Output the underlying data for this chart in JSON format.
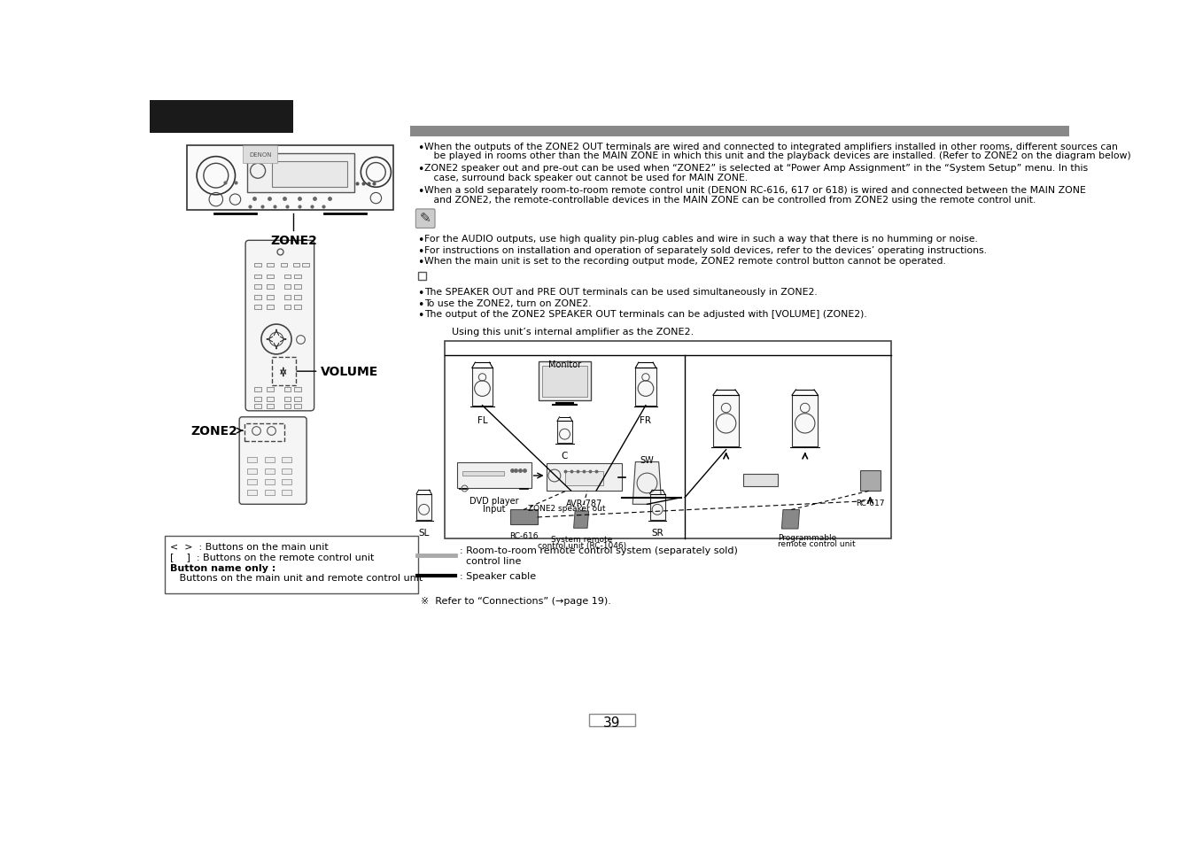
{
  "page_bg": "#ffffff",
  "header_bg": "#222222",
  "page_number": "39",
  "bullet_points_top": [
    "When the outputs of the ZONE2 OUT terminals are wired and connected to integrated amplifiers installed in other rooms, different sources can\n   be played in rooms other than the MAIN ZONE in which this unit and the playback devices are installed. (Refer to ZONE2 on the diagram below)",
    "ZONE2 speaker out and pre-out can be used when “ZONE2” is selected at “Power Amp Assignment” in the “System Setup” menu. In this\n   case, surround back speaker out cannot be used for MAIN ZONE.",
    "When a sold separately room-to-room remote control unit (DENON RC-616, 617 or 618) is wired and connected between the MAIN ZONE\n   and ZONE2, the remote-controllable devices in the MAIN ZONE can be controlled from ZONE2 using the remote control unit."
  ],
  "note_points": [
    "For the AUDIO outputs, use high quality pin-plug cables and wire in such a way that there is no humming or noise.",
    "For instructions on installation and operation of separately sold devices, refer to the devices’ operating instructions.",
    "When the main unit is set to the recording output mode, ZONE2 remote control button cannot be operated."
  ],
  "tip_points": [
    "The SPEAKER OUT and PRE OUT terminals can be used simultaneously in ZONE2.",
    "To use the ZONE2, turn on ZONE2.",
    "The output of the ZONE2 SPEAKER OUT terminals can be adjusted with [VOLUME] (ZONE2)."
  ],
  "diagram_caption": "Using this unit’s internal amplifier as the ZONE2.",
  "legend_line1": ": Room-to-room remote control system (separately sold)\n  control line",
  "legend_line2": ": Speaker cable",
  "refer_text": "※  Refer to “Connections” (→page 19).",
  "box_text_line1": "<  >  : Buttons on the main unit",
  "box_text_line2": "[    ]  : Buttons on the remote control unit",
  "box_text_line3": "Button name only :",
  "box_text_line4": "   Buttons on the main unit and remote control unit"
}
